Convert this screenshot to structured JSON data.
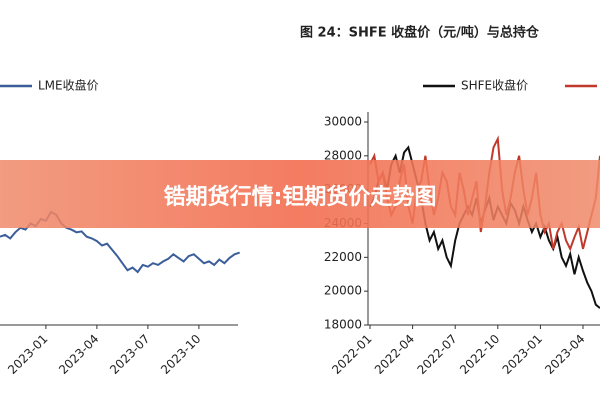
{
  "chart_data": [
    {
      "type": "line",
      "legend_position": "top",
      "categories": [
        null,
        null,
        null,
        null,
        null,
        null,
        null,
        null,
        null,
        "2023-01",
        null,
        null,
        null,
        null,
        null,
        null,
        null,
        null,
        null,
        "2023-04",
        null,
        null,
        null,
        null,
        null,
        null,
        null,
        null,
        null,
        "2023-07",
        null,
        null,
        null,
        null,
        null,
        null,
        null,
        null,
        null,
        "2023-10",
        null,
        null,
        null,
        null,
        null,
        null,
        null,
        null
      ],
      "ylim": [
        7000,
        10000
      ],
      "series": [
        {
          "name": "LME收盘价",
          "color": "#3b5e9a",
          "values": [
            8000,
            8020,
            7980,
            8050,
            8100,
            8080,
            8150,
            8120,
            8200,
            8180,
            8280,
            8250,
            8150,
            8100,
            8080,
            8050,
            8060,
            8000,
            7980,
            7950,
            7900,
            7920,
            7850,
            7780,
            7700,
            7620,
            7650,
            7600,
            7680,
            7660,
            7700,
            7680,
            7720,
            7750,
            7800,
            7760,
            7720,
            7780,
            7800,
            7750,
            7700,
            7720,
            7680,
            7740,
            7700,
            7760,
            7800,
            7820
          ]
        }
      ]
    },
    {
      "type": "line",
      "title": "图 24：SHFE 收盘价（元/吨）与总持仓",
      "legend_position": "top",
      "categories": [
        "2022-01",
        null,
        null,
        null,
        null,
        null,
        null,
        null,
        null,
        null,
        "2022-04",
        null,
        null,
        null,
        null,
        null,
        null,
        null,
        null,
        null,
        "2022-07",
        null,
        null,
        null,
        null,
        null,
        null,
        null,
        null,
        null,
        "2022-10",
        null,
        null,
        null,
        null,
        null,
        null,
        null,
        null,
        null,
        "2023-01",
        null,
        null,
        null,
        null,
        null,
        null,
        null,
        null,
        null,
        "2023-04",
        null,
        null,
        null,
        null
      ],
      "ylim": [
        18000,
        30000
      ],
      "yticks": [
        18000,
        20000,
        22000,
        24000,
        26000,
        28000,
        30000
      ],
      "series": [
        {
          "name": "SHFE收盘价",
          "color": "#111111",
          "values": [
            25000,
            25500,
            26500,
            27000,
            26000,
            27500,
            28000,
            27000,
            28200,
            28500,
            27500,
            26500,
            25500,
            24000,
            23000,
            23500,
            22500,
            23000,
            22000,
            21500,
            23000,
            24000,
            24500,
            25000,
            24500,
            25500,
            24000,
            24800,
            25500,
            24200,
            25000,
            24500,
            24000,
            25200,
            24800,
            24000,
            25000,
            24200,
            23500,
            24000,
            23200,
            23800,
            23000,
            22500,
            23200,
            22000,
            21500,
            22200,
            21000,
            22000,
            21200,
            20500,
            20000,
            19200,
            19000
          ]
        },
        {
          "color": "#c0392b",
          "values": [
            27500,
            28000,
            26500,
            27000,
            25500,
            24500,
            25000,
            26500,
            27500,
            25000,
            24000,
            26000,
            26500,
            28000,
            26000,
            24500,
            25500,
            27000,
            26500,
            25000,
            24500,
            27000,
            26000,
            24500,
            25500,
            26500,
            23500,
            25000,
            27000,
            28500,
            29000,
            26000,
            24500,
            25500,
            27000,
            28000,
            26000,
            24500,
            25500,
            27000,
            24500,
            23500,
            24000,
            22500,
            23500,
            24000,
            23000,
            22500,
            23200,
            23800,
            22500,
            23500,
            24500,
            25500,
            28000
          ]
        }
      ]
    }
  ],
  "banner": {
    "text": "锆期货行情:钽期货价走势图"
  }
}
